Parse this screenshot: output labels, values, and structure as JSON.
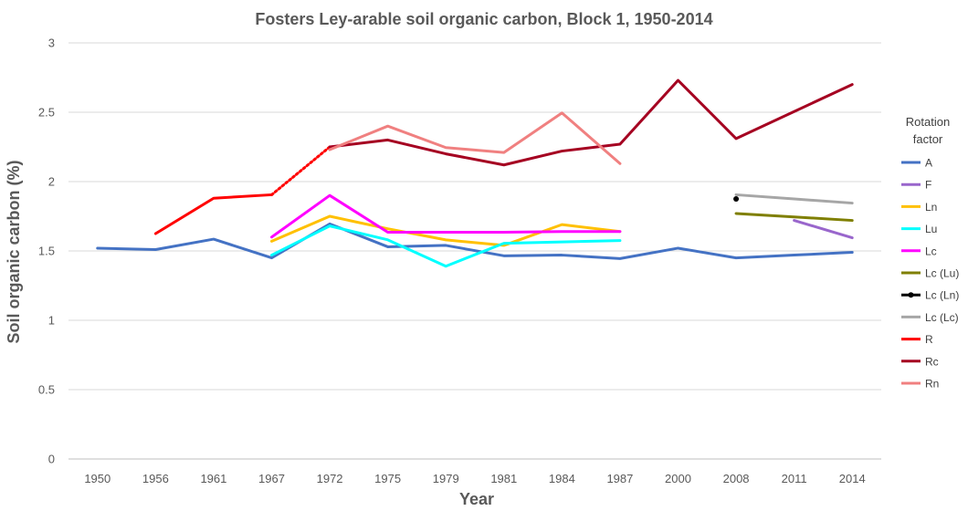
{
  "chart_data": {
    "type": "line",
    "title": "Fosters Ley-arable soil organic carbon, Block 1, 1950-2014",
    "xlabel": "Year",
    "ylabel": "Soil organic carbon (%)",
    "ylim": [
      0,
      3
    ],
    "yticks": [
      "0",
      "0.5",
      "1",
      "1.5",
      "2",
      "2.5",
      "3"
    ],
    "categories": [
      "1950",
      "1956",
      "1961",
      "1967",
      "1972",
      "1975",
      "1979",
      "1981",
      "1984",
      "1987",
      "2000",
      "2008",
      "2011",
      "2014"
    ],
    "grid": "horizontal",
    "legend_title_lines": [
      "Rotation",
      "factor"
    ],
    "legend_position": "right",
    "series": [
      {
        "name": "A",
        "color": "#4472c4",
        "values": [
          1.52,
          1.51,
          1.585,
          1.45,
          1.695,
          1.53,
          1.54,
          1.465,
          1.47,
          1.445,
          1.52,
          1.45,
          1.47,
          1.49
        ]
      },
      {
        "name": "F",
        "color": "#9966cc",
        "values": [
          null,
          null,
          null,
          null,
          null,
          null,
          null,
          null,
          null,
          null,
          null,
          null,
          1.72,
          1.595
        ]
      },
      {
        "name": "Ln",
        "color": "#ffc000",
        "values": [
          null,
          null,
          null,
          1.57,
          1.75,
          1.66,
          1.58,
          1.54,
          1.69,
          1.64,
          null,
          null,
          null,
          null
        ]
      },
      {
        "name": "Lu",
        "color": "#00ffff",
        "values": [
          null,
          null,
          null,
          1.47,
          1.68,
          1.58,
          1.39,
          1.555,
          1.565,
          1.575,
          null,
          null,
          null,
          null
        ]
      },
      {
        "name": "Lc",
        "color": "#ff00ff",
        "values": [
          null,
          null,
          null,
          1.6,
          1.9,
          1.635,
          1.635,
          1.635,
          1.64,
          1.64,
          null,
          null,
          null,
          null
        ]
      },
      {
        "name": "Lc (Lu)",
        "color": "#7f7f00",
        "values": [
          null,
          null,
          null,
          null,
          null,
          null,
          null,
          null,
          null,
          null,
          null,
          1.77,
          1.745,
          1.72
        ]
      },
      {
        "name": "Lc (Ln)",
        "color": "#000000",
        "marker": true,
        "values": [
          null,
          null,
          null,
          null,
          null,
          null,
          null,
          null,
          null,
          null,
          null,
          1.875,
          null,
          null
        ]
      },
      {
        "name": "Lc (Lc)",
        "color": "#a6a6a6",
        "values": [
          null,
          null,
          null,
          null,
          null,
          null,
          null,
          null,
          null,
          null,
          null,
          1.905,
          1.875,
          1.845
        ]
      },
      {
        "name": "R",
        "color": "#ff0000",
        "dotted_to_next": "Rc",
        "values": [
          null,
          1.625,
          1.88,
          1.905,
          null,
          null,
          null,
          null,
          null,
          null,
          null,
          null,
          null,
          null
        ]
      },
      {
        "name": "Rc",
        "color": "#a50021",
        "values": [
          null,
          null,
          null,
          null,
          2.25,
          2.3,
          2.2,
          2.12,
          2.22,
          2.27,
          2.73,
          2.31,
          2.505,
          2.7
        ]
      },
      {
        "name": "Rn",
        "color": "#f08080",
        "values": [
          null,
          null,
          null,
          null,
          2.23,
          2.4,
          2.245,
          2.21,
          2.495,
          2.13,
          null,
          null,
          null,
          null
        ]
      }
    ]
  }
}
